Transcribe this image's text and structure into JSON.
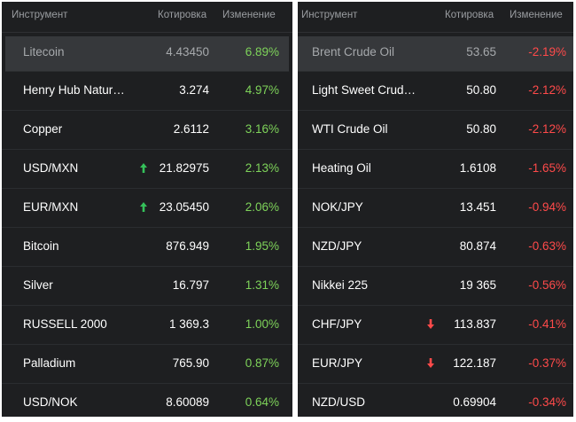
{
  "colors": {
    "panel_bg": "#1e1f21",
    "positive": "#7ed35a",
    "negative": "#ff4a4a",
    "highlight_row": "#36383b",
    "up_arrow": "#35c15a",
    "down_arrow": "#ff4a4a"
  },
  "left": {
    "header": {
      "name": "Инструмент",
      "quote": "Котировка",
      "change": "Изменение"
    },
    "rows": [
      {
        "name": "Litecoin",
        "quote": "4.43450",
        "change": "6.89%"
      },
      {
        "name": "Henry Hub Natur…",
        "quote": "3.274",
        "change": "4.97%"
      },
      {
        "name": "Copper",
        "quote": "2.6112",
        "change": "3.16%"
      },
      {
        "name": "USD/MXN",
        "quote": "21.82975",
        "change": "2.13%",
        "arrow": "up-arrow-icon"
      },
      {
        "name": "EUR/MXN",
        "quote": "23.05450",
        "change": "2.06%",
        "arrow": "up-arrow-icon"
      },
      {
        "name": "Bitcoin",
        "quote": "876.949",
        "change": "1.95%"
      },
      {
        "name": "Silver",
        "quote": "16.797",
        "change": "1.31%"
      },
      {
        "name": "RUSSELL 2000",
        "quote": "1 369.3",
        "change": "1.00%"
      },
      {
        "name": "Palladium",
        "quote": "765.90",
        "change": "0.87%"
      },
      {
        "name": "USD/NOK",
        "quote": "8.60089",
        "change": "0.64%"
      }
    ]
  },
  "right": {
    "header": {
      "name": "Инструмент",
      "quote": "Котировка",
      "change": "Изменение"
    },
    "rows": [
      {
        "name": "Brent Crude Oil",
        "quote": "53.65",
        "change": "-2.19%"
      },
      {
        "name": "Light Sweet Crud…",
        "quote": "50.80",
        "change": "-2.12%"
      },
      {
        "name": "WTI Crude Oil",
        "quote": "50.80",
        "change": "-2.12%"
      },
      {
        "name": "Heating Oil",
        "quote": "1.6108",
        "change": "-1.65%"
      },
      {
        "name": "NOK/JPY",
        "quote": "13.451",
        "change": "-0.94%"
      },
      {
        "name": "NZD/JPY",
        "quote": "80.874",
        "change": "-0.63%"
      },
      {
        "name": "Nikkei 225",
        "quote": "19 365",
        "change": "-0.56%"
      },
      {
        "name": "CHF/JPY",
        "quote": "113.837",
        "change": "-0.41%",
        "arrow": "down-arrow-icon"
      },
      {
        "name": "EUR/JPY",
        "quote": "122.187",
        "change": "-0.37%",
        "arrow": "down-arrow-icon"
      },
      {
        "name": "NZD/USD",
        "quote": "0.69904",
        "change": "-0.34%"
      }
    ]
  }
}
